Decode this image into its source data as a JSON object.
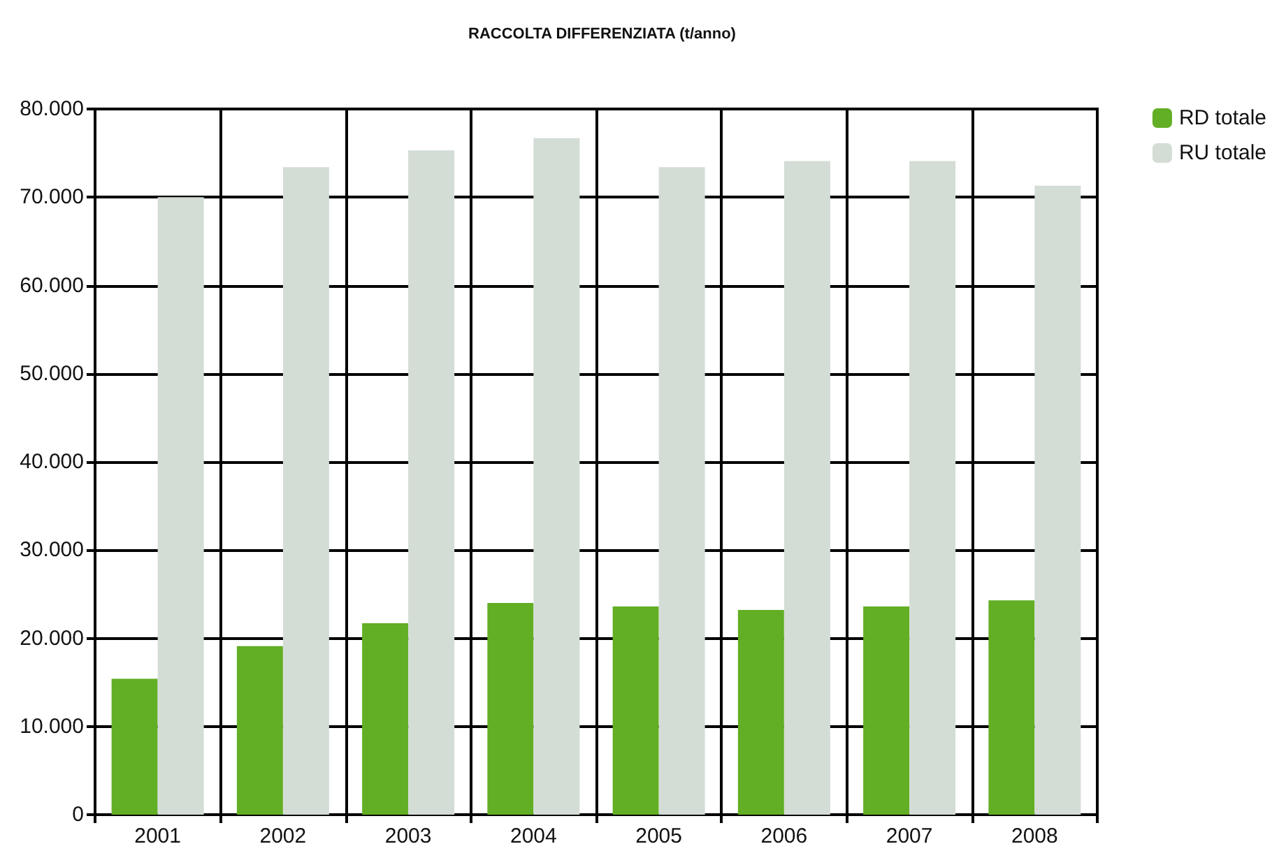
{
  "chart_data": {
    "type": "bar",
    "title": "RACCOLTA DIFFERENZIATA (t/anno)",
    "categories": [
      "2001",
      "2002",
      "2003",
      "2004",
      "2005",
      "2006",
      "2007",
      "2008"
    ],
    "series": [
      {
        "name": "RD totale",
        "color": "#62ae24",
        "values": [
          15400,
          19100,
          21700,
          24000,
          23600,
          23200,
          23600,
          24300
        ]
      },
      {
        "name": "RU totale",
        "color": "#d3ddd6",
        "values": [
          70000,
          73400,
          75300,
          76700,
          73400,
          74100,
          74100,
          71300
        ]
      }
    ],
    "ylim": [
      0,
      80000
    ],
    "yticks": [
      {
        "value": 0,
        "label": "0"
      },
      {
        "value": 10000,
        "label": "10.000"
      },
      {
        "value": 20000,
        "label": "20.000"
      },
      {
        "value": 30000,
        "label": "30.000"
      },
      {
        "value": 40000,
        "label": "40.000"
      },
      {
        "value": 50000,
        "label": "50.000"
      },
      {
        "value": 60000,
        "label": "60.000"
      },
      {
        "value": 70000,
        "label": "70.000"
      },
      {
        "value": 80000,
        "label": "80.000"
      }
    ],
    "grid": true,
    "legend": "top right"
  }
}
